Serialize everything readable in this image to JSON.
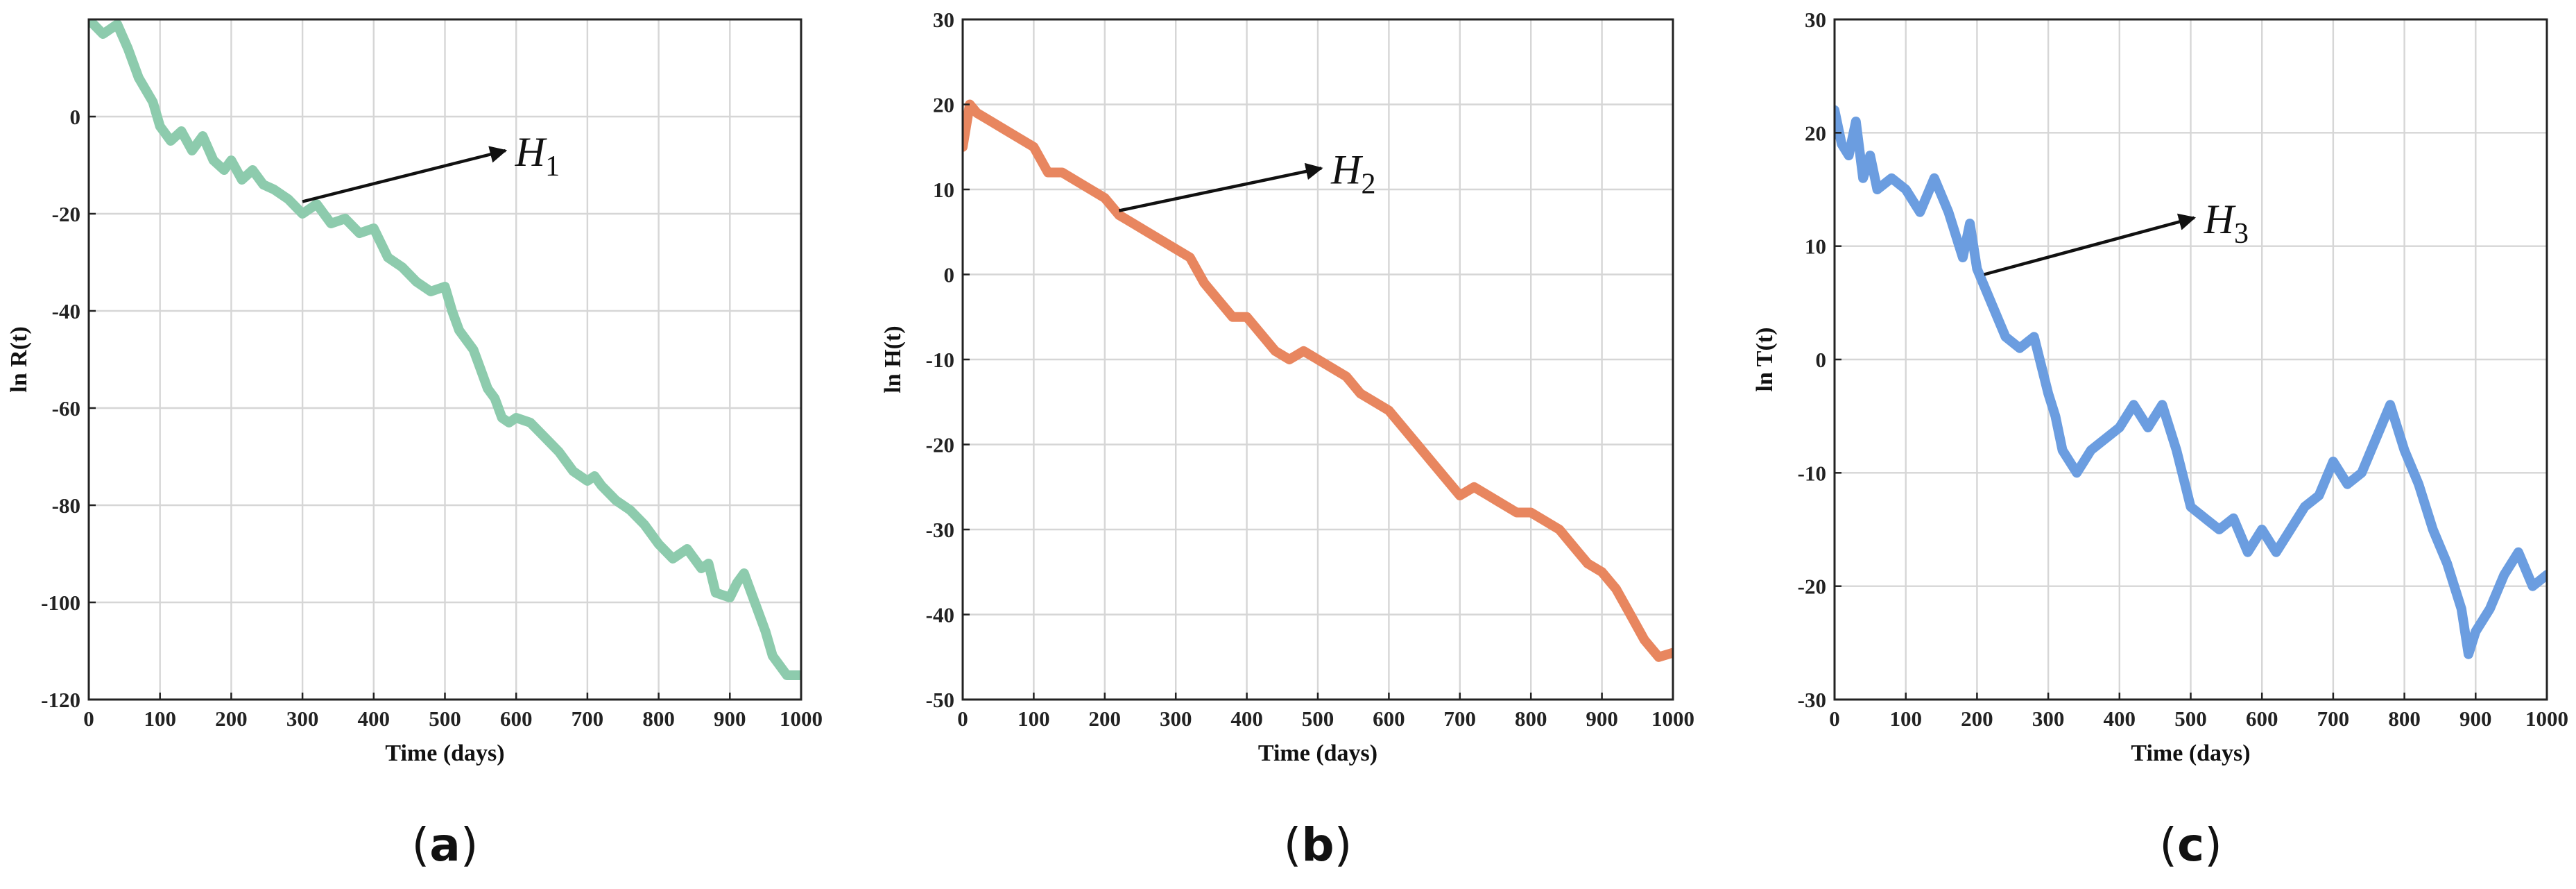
{
  "chart_data": [
    {
      "type": "line",
      "panel": "(a)",
      "panel_letter": "a",
      "xlabel": "Time (days)",
      "ylabel": "ln R(t)",
      "xlim": [
        0,
        1000
      ],
      "ylim": [
        -120,
        20
      ],
      "xticks": [
        0,
        100,
        200,
        300,
        400,
        500,
        600,
        700,
        800,
        900,
        1000
      ],
      "yticks": [
        -120,
        -100,
        -80,
        -60,
        -40,
        -20,
        0
      ],
      "grid": true,
      "color": "#8dcbad",
      "annotation": {
        "symbol": "H",
        "subscript": "1",
        "arrow_from": [
          300,
          -17.5
        ],
        "arrow_to": [
          585,
          -7
        ]
      },
      "series": [
        {
          "x": [
            0,
            20,
            40,
            55,
            70,
            90,
            100,
            115,
            130,
            145,
            160,
            175,
            190,
            200,
            215,
            230,
            245,
            260,
            280,
            300,
            320,
            340,
            360,
            380,
            400,
            420,
            440,
            460,
            480,
            500,
            510,
            520,
            540,
            550,
            560,
            570,
            580,
            590,
            600,
            620,
            640,
            660,
            680,
            700,
            710,
            720,
            740,
            760,
            780,
            800,
            820,
            840,
            860,
            870,
            880,
            900,
            910,
            920,
            930,
            940,
            950,
            960,
            980,
            1000
          ],
          "y": [
            20,
            17,
            19,
            14,
            8,
            3,
            -2,
            -5,
            -3,
            -7,
            -4,
            -9,
            -11,
            -9,
            -13,
            -11,
            -14,
            -15,
            -17,
            -20,
            -18,
            -22,
            -21,
            -24,
            -23,
            -29,
            -31,
            -34,
            -36,
            -35,
            -40,
            -44,
            -48,
            -52,
            -56,
            -58,
            -62,
            -63,
            -62,
            -63,
            -66,
            -69,
            -73,
            -75,
            -74,
            -76,
            -79,
            -81,
            -84,
            -88,
            -91,
            -89,
            -93,
            -92,
            -98,
            -99,
            -96,
            -94,
            -98,
            -102,
            -106,
            -111,
            -115,
            -115
          ]
        }
      ]
    },
    {
      "type": "line",
      "panel": "(b)",
      "panel_letter": "b",
      "xlabel": "Time (days)",
      "ylabel": "ln H(t)",
      "xlim": [
        0,
        1000
      ],
      "ylim": [
        -50,
        30
      ],
      "xticks": [
        0,
        100,
        200,
        300,
        400,
        500,
        600,
        700,
        800,
        900,
        1000
      ],
      "yticks": [
        -50,
        -40,
        -30,
        -20,
        -10,
        0,
        10,
        20,
        30
      ],
      "grid": true,
      "color": "#e8865f",
      "annotation": {
        "symbol": "H",
        "subscript": "2",
        "arrow_from": [
          220,
          7.5
        ],
        "arrow_to": [
          505,
          12.5
        ]
      },
      "series": [
        {
          "x": [
            0,
            10,
            20,
            40,
            60,
            80,
            100,
            120,
            140,
            160,
            180,
            200,
            220,
            240,
            260,
            280,
            300,
            320,
            340,
            360,
            380,
            400,
            420,
            440,
            460,
            480,
            500,
            520,
            540,
            560,
            580,
            600,
            620,
            640,
            660,
            680,
            700,
            720,
            740,
            760,
            780,
            800,
            820,
            840,
            860,
            880,
            900,
            920,
            940,
            960,
            980,
            1000
          ],
          "y": [
            15,
            20,
            19,
            18,
            17,
            16,
            15,
            12,
            12,
            11,
            10,
            9,
            7,
            6,
            5,
            4,
            3,
            2,
            -1,
            -3,
            -5,
            -5,
            -7,
            -9,
            -10,
            -9,
            -10,
            -11,
            -12,
            -14,
            -15,
            -16,
            -18,
            -20,
            -22,
            -24,
            -26,
            -25,
            -26,
            -27,
            -28,
            -28,
            -29,
            -30,
            -32,
            -34,
            -35,
            -37,
            -40,
            -43,
            -45,
            -44.5
          ]
        }
      ]
    },
    {
      "type": "line",
      "panel": "(c)",
      "panel_letter": "c",
      "xlabel": "Time (days)",
      "ylabel": "ln T(t)",
      "xlim": [
        0,
        1000
      ],
      "ylim": [
        -30,
        30
      ],
      "xticks": [
        0,
        100,
        200,
        300,
        400,
        500,
        600,
        700,
        800,
        900,
        1000
      ],
      "yticks": [
        -30,
        -20,
        -10,
        0,
        10,
        20,
        30
      ],
      "grid": true,
      "color": "#6b9de0",
      "annotation": {
        "symbol": "H",
        "subscript": "3",
        "arrow_from": [
          210,
          7.5
        ],
        "arrow_to": [
          505,
          12.5
        ]
      },
      "series": [
        {
          "x": [
            0,
            10,
            20,
            30,
            40,
            50,
            60,
            80,
            100,
            120,
            140,
            160,
            180,
            190,
            200,
            220,
            240,
            260,
            280,
            300,
            310,
            320,
            340,
            360,
            380,
            400,
            420,
            440,
            460,
            480,
            500,
            520,
            540,
            560,
            580,
            600,
            620,
            640,
            660,
            680,
            700,
            720,
            740,
            760,
            780,
            800,
            820,
            840,
            860,
            880,
            890,
            900,
            920,
            940,
            960,
            980,
            1000
          ],
          "y": [
            22,
            19,
            18,
            21,
            16,
            18,
            15,
            16,
            15,
            13,
            16,
            13,
            9,
            12,
            8,
            5,
            2,
            1,
            2,
            -3,
            -5,
            -8,
            -10,
            -8,
            -7,
            -6,
            -4,
            -6,
            -4,
            -8,
            -13,
            -14,
            -15,
            -14,
            -17,
            -15,
            -17,
            -15,
            -13,
            -12,
            -9,
            -11,
            -10,
            -7,
            -4,
            -8,
            -11,
            -15,
            -18,
            -22,
            -26,
            -24,
            -22,
            -19,
            -17,
            -20,
            -19
          ]
        }
      ]
    }
  ]
}
